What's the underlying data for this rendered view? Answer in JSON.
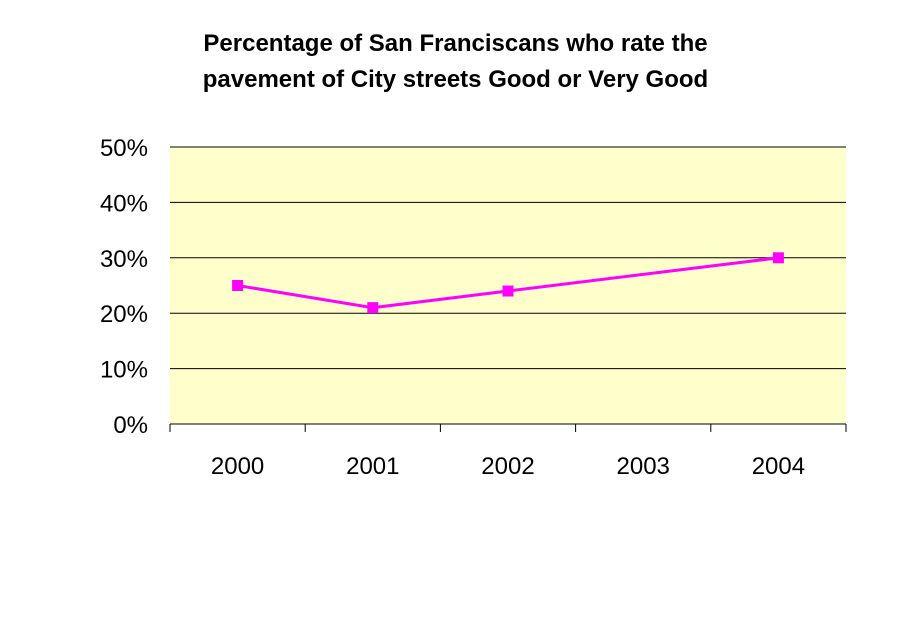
{
  "chart_data": {
    "type": "line",
    "title_lines": [
      "Percentage of San Franciscans who rate the",
      "pavement of City streets Good or Very Good"
    ],
    "categories": [
      "2000",
      "2001",
      "2002",
      "2003",
      "2004"
    ],
    "series": [
      {
        "values": [
          25,
          21,
          24,
          null,
          30
        ]
      }
    ],
    "y_ticks": [
      "0%",
      "10%",
      "20%",
      "30%",
      "40%",
      "50%"
    ],
    "ylim": [
      0,
      50
    ],
    "grid": true,
    "legend": "none",
    "colors": {
      "plot_background": "#ffffcc",
      "series_line": "#ff00ff",
      "gridline": "#000000"
    }
  }
}
